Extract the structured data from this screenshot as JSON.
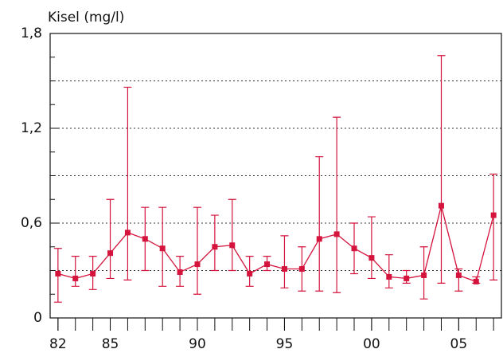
{
  "chart_data": {
    "type": "line",
    "title": "Kisel (mg/l)",
    "x": [
      1982,
      1983,
      1984,
      1985,
      1986,
      1987,
      1988,
      1989,
      1990,
      1991,
      1992,
      1993,
      1994,
      1995,
      1996,
      1997,
      1998,
      1999,
      2000,
      2001,
      2002,
      2003,
      2004,
      2005,
      2006,
      2007
    ],
    "series": [
      {
        "color": "#d4143c",
        "values": [
          0.28,
          0.25,
          0.28,
          0.41,
          0.54,
          0.5,
          0.44,
          0.29,
          0.34,
          0.45,
          0.46,
          0.28,
          0.34,
          0.31,
          0.31,
          0.5,
          0.53,
          0.44,
          0.38,
          0.26,
          0.25,
          0.27,
          0.71,
          0.27,
          0.23,
          0.65
        ],
        "lower": [
          0.1,
          0.2,
          0.18,
          0.25,
          0.24,
          0.3,
          0.2,
          0.2,
          0.15,
          0.3,
          0.3,
          0.2,
          0.3,
          0.19,
          0.17,
          0.17,
          0.16,
          0.28,
          0.25,
          0.19,
          0.22,
          0.12,
          0.22,
          0.17,
          0.22,
          0.24
        ],
        "upper": [
          0.44,
          0.39,
          0.39,
          0.75,
          1.46,
          0.7,
          0.7,
          0.39,
          0.7,
          0.65,
          0.75,
          0.39,
          0.39,
          0.52,
          0.45,
          1.02,
          1.27,
          0.6,
          0.64,
          0.4,
          0.3,
          0.45,
          1.66,
          0.31,
          0.26,
          0.91
        ]
      }
    ],
    "xlim": [
      1981.55,
      2007.45
    ],
    "xticks": [
      {
        "value": 1982,
        "label": "82"
      },
      {
        "value": 1985,
        "label": "85"
      },
      {
        "value": 1990,
        "label": "90"
      },
      {
        "value": 1995,
        "label": "95"
      },
      {
        "value": 2000,
        "label": "00"
      },
      {
        "value": 2005,
        "label": "05"
      }
    ],
    "ylim": [
      0,
      1.8
    ],
    "yticks": [
      0,
      {
        "value": 0.6,
        "label": "0,6"
      },
      {
        "value": 1.2,
        "label": "1,2"
      },
      {
        "value": 1.8,
        "label": "1,8"
      }
    ],
    "yminorticks": [
      0.15,
      0.3,
      0.45,
      0.75,
      0.9,
      1.05,
      1.35,
      1.5,
      1.65
    ],
    "ygrid": [
      0.3,
      0.6,
      0.9,
      1.2,
      1.5
    ]
  }
}
